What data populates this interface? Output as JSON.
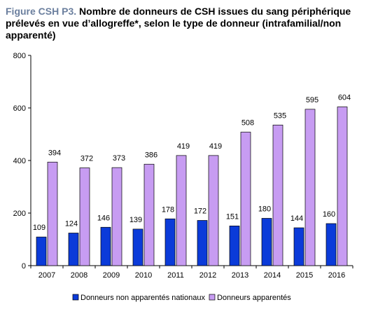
{
  "figure_label": "Figure CSH P3.",
  "title_text": "Nombre de donneurs de CSH issues du sang périphérique prélevés en vue d’allogreffe*, selon le type de donneur (intrafamilial/non apparenté)",
  "chart_data": {
    "type": "bar",
    "categories": [
      "2007",
      "2008",
      "2009",
      "2010",
      "2011",
      "2012",
      "2013",
      "2014",
      "2015",
      "2016"
    ],
    "series": [
      {
        "name": "Donneurs non apparentés nationaux",
        "color": "#0b3bd9",
        "values": [
          109,
          124,
          146,
          139,
          178,
          172,
          151,
          180,
          144,
          160
        ]
      },
      {
        "name": "Donneurs apparentés",
        "color": "#c79cf2",
        "values": [
          394,
          372,
          373,
          386,
          419,
          419,
          508,
          535,
          595,
          604
        ]
      }
    ],
    "ylim": [
      0,
      800
    ],
    "yticks": [
      0,
      200,
      400,
      600,
      800
    ],
    "grid": false,
    "legend": "bottom"
  }
}
